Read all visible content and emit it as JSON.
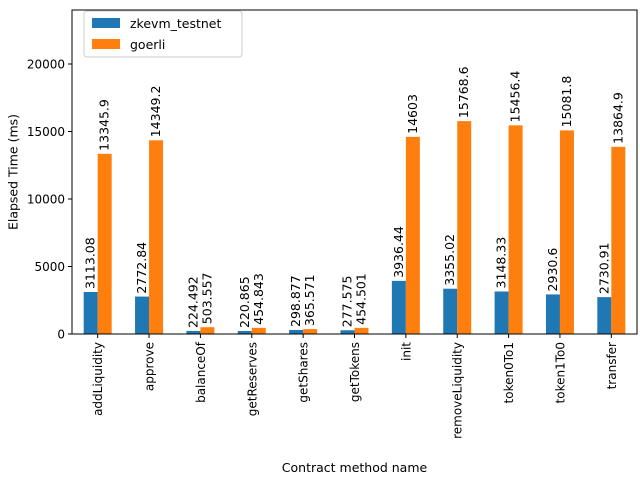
{
  "chart_data": {
    "type": "bar",
    "xlabel": "Contract method name",
    "ylabel": "Elapsed Time (ms)",
    "ylim": [
      0,
      24000
    ],
    "yticks": [
      0,
      5000,
      10000,
      15000,
      20000
    ],
    "grid": false,
    "legend_position": "top-left",
    "categories": [
      "addLiquidity",
      "approve",
      "balanceOf",
      "getReserves",
      "getShares",
      "getTokens",
      "init",
      "removeLiquidity",
      "token0To1",
      "token1To0",
      "transfer"
    ],
    "series": [
      {
        "name": "zkevm_testnet",
        "color": "#1f77b4",
        "values": [
          3113.08,
          2772.84,
          224.492,
          220.865,
          298.877,
          277.575,
          3936.44,
          3355.02,
          3148.33,
          2930.6,
          2730.91
        ],
        "labels": [
          "3113.08",
          "2772.84",
          "224.492",
          "220.865",
          "298.877",
          "277.575",
          "3936.44",
          "3355.02",
          "3148.33",
          "2930.6",
          "2730.91"
        ]
      },
      {
        "name": "goerli",
        "color": "#ff7f0e",
        "values": [
          13345.9,
          14349.2,
          503.557,
          454.843,
          365.571,
          454.501,
          14603,
          15768.6,
          15456.4,
          15081.8,
          13864.9
        ],
        "labels": [
          "13345.9",
          "14349.2",
          "503.557",
          "454.843",
          "365.571",
          "454.501",
          "14603",
          "15768.6",
          "15456.4",
          "15081.8",
          "13864.9"
        ]
      }
    ]
  }
}
